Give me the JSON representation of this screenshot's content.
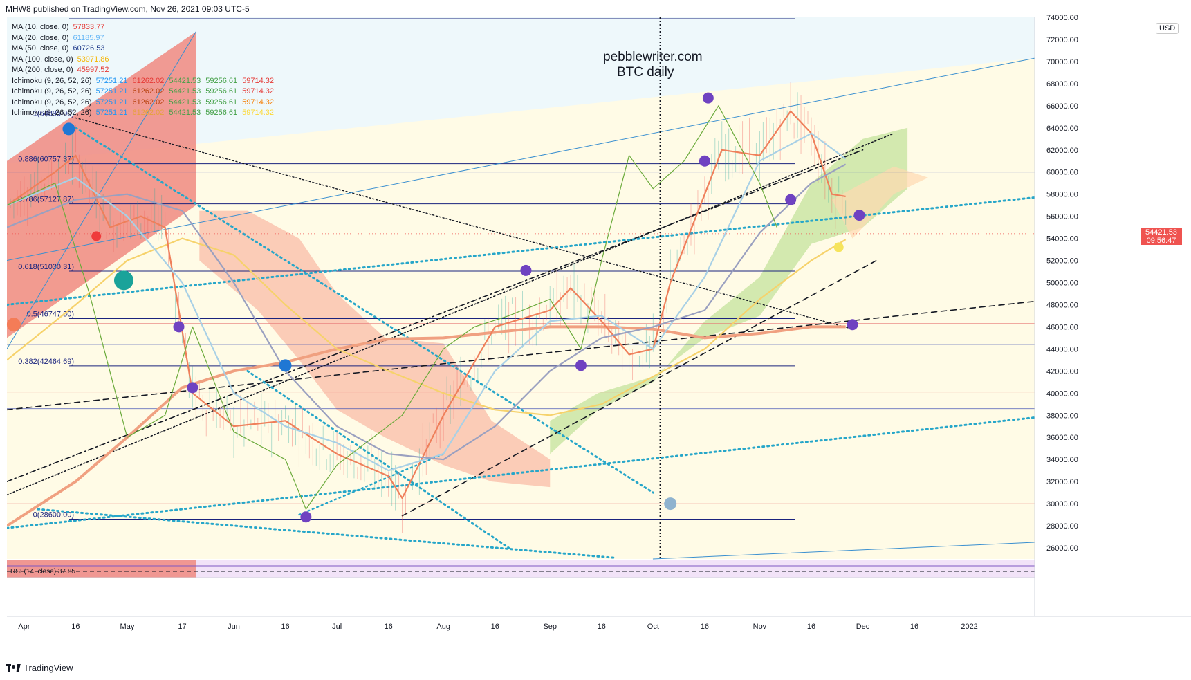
{
  "header": {
    "published": "MHW8 published on TradingView.com, Nov 26, 2021 09:03 UTC-5"
  },
  "watermark": {
    "line1": "pebblewriter.com",
    "line2": "BTC daily"
  },
  "legend": [
    {
      "name": "MA (10, close, 0)",
      "values": [
        {
          "v": "57833.77",
          "color": "#e53935"
        }
      ]
    },
    {
      "name": "MA (20, close, 0)",
      "values": [
        {
          "v": "61185.97",
          "color": "#64b5f6"
        }
      ]
    },
    {
      "name": "MA (50, close, 0)",
      "values": [
        {
          "v": "60726.53",
          "color": "#1e3a8a"
        }
      ]
    },
    {
      "name": "MA (100, close, 0)",
      "values": [
        {
          "v": "53971.86",
          "color": "#f5b400"
        }
      ]
    },
    {
      "name": "MA (200, close, 0)",
      "values": [
        {
          "v": "45997.52",
          "color": "#e53935"
        }
      ]
    },
    {
      "name": "Ichimoku (9, 26, 52, 26)",
      "values": [
        {
          "v": "57251.21",
          "color": "#2196f3"
        },
        {
          "v": "61262.02",
          "color": "#e53935"
        },
        {
          "v": "54421.53",
          "color": "#43a047"
        },
        {
          "v": "59256.61",
          "color": "#43a047"
        },
        {
          "v": "59714.32",
          "color": "#e53935"
        }
      ]
    },
    {
      "name": "Ichimoku (9, 26, 52, 26)",
      "values": [
        {
          "v": "57251.21",
          "color": "#2196f3"
        },
        {
          "v": "61262.02",
          "color": "#b7410e"
        },
        {
          "v": "54421.53",
          "color": "#43a047"
        },
        {
          "v": "59256.61",
          "color": "#43a047"
        },
        {
          "v": "59714.32",
          "color": "#e53935"
        }
      ]
    },
    {
      "name": "Ichimoku (9, 26, 52, 26)",
      "values": [
        {
          "v": "57251.21",
          "color": "#2196f3"
        },
        {
          "v": "61262.02",
          "color": "#b7410e"
        },
        {
          "v": "54421.53",
          "color": "#43a047"
        },
        {
          "v": "59256.61",
          "color": "#43a047"
        },
        {
          "v": "59714.32",
          "color": "#f57c00"
        }
      ]
    },
    {
      "name": "Ichimoku (9, 26, 52, 26)",
      "values": [
        {
          "v": "57251.21",
          "color": "#2196f3"
        },
        {
          "v": "61262.02",
          "color": "#e6a23c"
        },
        {
          "v": "54421.53",
          "color": "#43a047"
        },
        {
          "v": "59256.61",
          "color": "#43a047"
        },
        {
          "v": "59714.32",
          "color": "#fdd835"
        }
      ]
    }
  ],
  "rsi_label": "RSI (14, close) 37.85",
  "price_tag": {
    "price": "54421.53",
    "time": "09:56:47",
    "color": "#ef5350"
  },
  "currency": "USD",
  "footer": {
    "brand": "TradingView"
  },
  "chart_data": {
    "type": "line",
    "instrument": "BTC daily",
    "ylim": [
      25000,
      74000
    ],
    "y_ticks": [
      26000,
      28000,
      30000,
      32000,
      34000,
      36000,
      38000,
      40000,
      42000,
      44000,
      46000,
      48000,
      50000,
      52000,
      54000,
      56000,
      58000,
      60000,
      62000,
      64000,
      66000,
      68000,
      70000,
      72000,
      74000
    ],
    "x_ticks": [
      {
        "label": "Apr",
        "x": "2021-04-01"
      },
      {
        "label": "16",
        "x": "2021-04-16"
      },
      {
        "label": "May",
        "x": "2021-05-01"
      },
      {
        "label": "17",
        "x": "2021-05-17"
      },
      {
        "label": "Jun",
        "x": "2021-06-01"
      },
      {
        "label": "16",
        "x": "2021-06-16"
      },
      {
        "label": "Jul",
        "x": "2021-07-01"
      },
      {
        "label": "16",
        "x": "2021-07-16"
      },
      {
        "label": "Aug",
        "x": "2021-08-01"
      },
      {
        "label": "16",
        "x": "2021-08-16"
      },
      {
        "label": "Sep",
        "x": "2021-09-01"
      },
      {
        "label": "16",
        "x": "2021-09-16"
      },
      {
        "label": "Oct",
        "x": "2021-10-01"
      },
      {
        "label": "16",
        "x": "2021-10-16"
      },
      {
        "label": "Nov",
        "x": "2021-11-01"
      },
      {
        "label": "16",
        "x": "2021-11-16"
      },
      {
        "label": "Dec",
        "x": "2021-12-01"
      },
      {
        "label": "16",
        "x": "2021-12-16"
      },
      {
        "label": "2022",
        "x": "2022-01-01"
      }
    ],
    "fib_levels": [
      {
        "label": "1(64895.00)",
        "y": 64895
      },
      {
        "label": "0.886(60757.37)",
        "y": 60757.37
      },
      {
        "label": "0.786(57127.87)",
        "y": 57127.87
      },
      {
        "label": "0.618(51030.31)",
        "y": 51030.31
      },
      {
        "label": "0.5(46747.50)",
        "y": 46747.5
      },
      {
        "label": "0.382(42464.69)",
        "y": 42464.69
      },
      {
        "label": "0(28600.00)",
        "y": 28600
      }
    ],
    "series": [
      {
        "name": "MA (200, close, 0)",
        "color": "#f0a080",
        "points": [
          [
            "2021-03-27",
            28000
          ],
          [
            "2021-04-16",
            32000
          ],
          [
            "2021-05-01",
            36000
          ],
          [
            "2021-05-17",
            40500
          ],
          [
            "2021-06-01",
            42000
          ],
          [
            "2021-06-16",
            42800
          ],
          [
            "2021-07-01",
            44000
          ],
          [
            "2021-07-16",
            44900
          ],
          [
            "2021-08-01",
            45000
          ],
          [
            "2021-08-16",
            45500
          ],
          [
            "2021-09-01",
            46000
          ],
          [
            "2021-09-16",
            46000
          ],
          [
            "2021-10-01",
            45800
          ],
          [
            "2021-10-16",
            45000
          ],
          [
            "2021-11-01",
            45400
          ],
          [
            "2021-11-16",
            46000
          ],
          [
            "2021-11-26",
            46000
          ]
        ]
      },
      {
        "name": "MA (100, close, 0)",
        "color": "#f6d26b",
        "points": [
          [
            "2021-03-27",
            43000
          ],
          [
            "2021-04-16",
            48000
          ],
          [
            "2021-05-01",
            52000
          ],
          [
            "2021-05-17",
            54000
          ],
          [
            "2021-06-01",
            52500
          ],
          [
            "2021-06-16",
            48000
          ],
          [
            "2021-07-01",
            44000
          ],
          [
            "2021-07-16",
            42000
          ],
          [
            "2021-08-01",
            40000
          ],
          [
            "2021-08-16",
            38500
          ],
          [
            "2021-09-01",
            38000
          ],
          [
            "2021-09-16",
            39000
          ],
          [
            "2021-10-01",
            41500
          ],
          [
            "2021-10-16",
            44000
          ],
          [
            "2021-11-01",
            48500
          ],
          [
            "2021-11-16",
            52000
          ],
          [
            "2021-11-26",
            53900
          ]
        ]
      },
      {
        "name": "MA (10, close, 0)",
        "color": "#ef7f5a",
        "points": [
          [
            "2021-03-27",
            57000
          ],
          [
            "2021-04-10",
            60000
          ],
          [
            "2021-04-16",
            61500
          ],
          [
            "2021-04-26",
            55000
          ],
          [
            "2021-05-05",
            56000
          ],
          [
            "2021-05-12",
            55000
          ],
          [
            "2021-05-20",
            40000
          ],
          [
            "2021-06-01",
            37000
          ],
          [
            "2021-06-16",
            37500
          ],
          [
            "2021-07-01",
            34500
          ],
          [
            "2021-07-16",
            32500
          ],
          [
            "2021-07-20",
            30500
          ],
          [
            "2021-08-01",
            38000
          ],
          [
            "2021-08-16",
            46000
          ],
          [
            "2021-09-01",
            47500
          ],
          [
            "2021-09-07",
            49500
          ],
          [
            "2021-09-16",
            46500
          ],
          [
            "2021-09-24",
            43500
          ],
          [
            "2021-10-01",
            44000
          ],
          [
            "2021-10-06",
            50000
          ],
          [
            "2021-10-16",
            58000
          ],
          [
            "2021-10-21",
            62000
          ],
          [
            "2021-11-01",
            61500
          ],
          [
            "2021-11-10",
            65500
          ],
          [
            "2021-11-16",
            63500
          ],
          [
            "2021-11-22",
            58000
          ],
          [
            "2021-11-26",
            57800
          ]
        ]
      },
      {
        "name": "MA (20, close, 0)",
        "color": "#a8d0e6",
        "points": [
          [
            "2021-03-27",
            57000
          ],
          [
            "2021-04-16",
            59500
          ],
          [
            "2021-05-01",
            56000
          ],
          [
            "2021-05-17",
            50000
          ],
          [
            "2021-06-01",
            40000
          ],
          [
            "2021-06-16",
            37000
          ],
          [
            "2021-07-01",
            35500
          ],
          [
            "2021-07-16",
            33000
          ],
          [
            "2021-08-01",
            34500
          ],
          [
            "2021-08-16",
            42000
          ],
          [
            "2021-09-01",
            46500
          ],
          [
            "2021-09-16",
            47000
          ],
          [
            "2021-10-01",
            44000
          ],
          [
            "2021-10-16",
            50500
          ],
          [
            "2021-11-01",
            61000
          ],
          [
            "2021-11-16",
            63500
          ],
          [
            "2021-11-26",
            61200
          ]
        ]
      },
      {
        "name": "MA (50, close, 0)",
        "color": "#9aa0c0",
        "points": [
          [
            "2021-03-27",
            55000
          ],
          [
            "2021-04-16",
            57500
          ],
          [
            "2021-05-01",
            58000
          ],
          [
            "2021-05-17",
            56500
          ],
          [
            "2021-06-01",
            50000
          ],
          [
            "2021-06-16",
            42000
          ],
          [
            "2021-07-01",
            37000
          ],
          [
            "2021-07-16",
            34500
          ],
          [
            "2021-08-01",
            34000
          ],
          [
            "2021-08-16",
            37000
          ],
          [
            "2021-09-01",
            42000
          ],
          [
            "2021-09-16",
            45000
          ],
          [
            "2021-10-01",
            46000
          ],
          [
            "2021-10-16",
            47500
          ],
          [
            "2021-11-01",
            54500
          ],
          [
            "2021-11-16",
            59000
          ],
          [
            "2021-11-26",
            60700
          ]
        ]
      },
      {
        "name": "Ichimoku (9, 26, 52, 26)",
        "color": "#6aaa3a",
        "points": [
          [
            "2021-03-27",
            57000
          ],
          [
            "2021-04-10",
            59000
          ],
          [
            "2021-04-20",
            49000
          ],
          [
            "2021-05-01",
            36000
          ],
          [
            "2021-05-12",
            38000
          ],
          [
            "2021-05-20",
            46000
          ],
          [
            "2021-06-01",
            36500
          ],
          [
            "2021-06-16",
            34000
          ],
          [
            "2021-06-22",
            29500
          ],
          [
            "2021-07-01",
            33500
          ],
          [
            "2021-07-20",
            38000
          ],
          [
            "2021-08-01",
            44000
          ],
          [
            "2021-08-10",
            46000
          ],
          [
            "2021-08-20",
            47000
          ],
          [
            "2021-09-01",
            48500
          ],
          [
            "2021-09-10",
            44000
          ],
          [
            "2021-09-16",
            52000
          ],
          [
            "2021-09-24",
            61500
          ],
          [
            "2021-10-01",
            58500
          ],
          [
            "2021-10-10",
            61000
          ],
          [
            "2021-10-20",
            66000
          ],
          [
            "2021-11-01",
            59000
          ],
          [
            "2021-11-06",
            55000
          ]
        ]
      }
    ]
  }
}
